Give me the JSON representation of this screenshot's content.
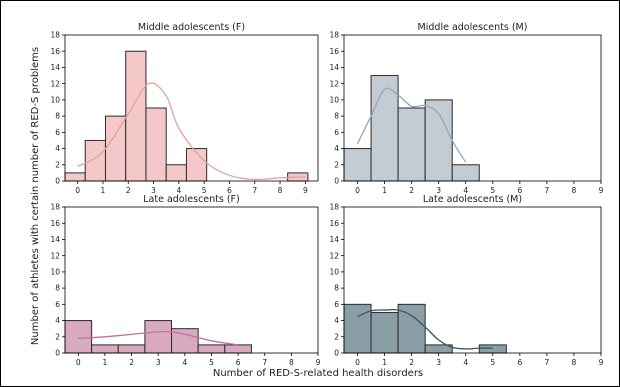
{
  "figure": {
    "ylabel": "Number of athletes with certain number of RED-S problems",
    "xlabel": "Number of RED-S-related health disorders"
  },
  "chart_data": [
    {
      "type": "bar",
      "title": "Middle adolescents (F)",
      "xlim": [
        -0.5,
        9.5
      ],
      "ylim": [
        0,
        18
      ],
      "xticks": [
        0,
        1,
        2,
        3,
        4,
        5,
        6,
        7,
        8,
        9
      ],
      "yticks": [
        0,
        2,
        4,
        6,
        8,
        10,
        12,
        14,
        16,
        18
      ],
      "bins": [
        {
          "start": -0.5,
          "end": 0.3,
          "value": 1
        },
        {
          "start": 0.3,
          "end": 1.1,
          "value": 5
        },
        {
          "start": 1.1,
          "end": 1.9,
          "value": 8
        },
        {
          "start": 1.9,
          "end": 2.7,
          "value": 16
        },
        {
          "start": 2.7,
          "end": 3.5,
          "value": 9
        },
        {
          "start": 3.5,
          "end": 4.3,
          "value": 2
        },
        {
          "start": 4.3,
          "end": 5.1,
          "value": 4
        },
        {
          "start": 8.3,
          "end": 9.1,
          "value": 1
        }
      ],
      "kde": [
        [
          0,
          1.8
        ],
        [
          1,
          3.6
        ],
        [
          2,
          8.3
        ],
        [
          2.8,
          12.0
        ],
        [
          3.5,
          10.5
        ],
        [
          4,
          6.5
        ],
        [
          5,
          2.5
        ],
        [
          6,
          0.7
        ],
        [
          7,
          0.2
        ],
        [
          8,
          0.4
        ],
        [
          9,
          0.5
        ]
      ],
      "bar_color": "#f4c8c8",
      "kde_color": "#e59f9f"
    },
    {
      "type": "bar",
      "title": "Middle adolescents (M)",
      "xlim": [
        -0.5,
        9
      ],
      "ylim": [
        0,
        18
      ],
      "xticks": [
        0,
        1,
        2,
        3,
        4,
        5,
        6,
        7,
        8,
        9
      ],
      "yticks": [
        0,
        2,
        4,
        6,
        8,
        10,
        12,
        14,
        16,
        18
      ],
      "bins": [
        {
          "start": -0.5,
          "end": 0.5,
          "value": 4
        },
        {
          "start": 0.5,
          "end": 1.5,
          "value": 13
        },
        {
          "start": 1.5,
          "end": 2.5,
          "value": 9
        },
        {
          "start": 2.5,
          "end": 3.5,
          "value": 10
        },
        {
          "start": 3.5,
          "end": 4.5,
          "value": 2
        }
      ],
      "kde": [
        [
          0,
          4.6
        ],
        [
          0.5,
          8.0
        ],
        [
          1,
          11.3
        ],
        [
          1.5,
          10.6
        ],
        [
          2,
          9.2
        ],
        [
          2.5,
          9.3
        ],
        [
          3,
          8.3
        ],
        [
          3.5,
          5.0
        ],
        [
          4,
          2.3
        ]
      ],
      "bar_color": "#c3cbd3",
      "kde_color": "#9aa6b2"
    },
    {
      "type": "bar",
      "title": "Late adolescents (F)",
      "xlim": [
        -0.5,
        9
      ],
      "ylim": [
        0,
        18
      ],
      "xticks": [
        0,
        1,
        2,
        3,
        4,
        5,
        6,
        7,
        8,
        9
      ],
      "yticks": [
        0,
        2,
        4,
        6,
        8,
        10,
        12,
        14,
        16,
        18
      ],
      "bins": [
        {
          "start": -0.5,
          "end": 0.5,
          "value": 4
        },
        {
          "start": 0.5,
          "end": 1.5,
          "value": 1
        },
        {
          "start": 1.5,
          "end": 2.5,
          "value": 1
        },
        {
          "start": 2.5,
          "end": 3.5,
          "value": 4
        },
        {
          "start": 3.5,
          "end": 4.5,
          "value": 3
        },
        {
          "start": 4.5,
          "end": 5.5,
          "value": 1
        },
        {
          "start": 5.5,
          "end": 6.5,
          "value": 1
        }
      ],
      "kde": [
        [
          0,
          1.8
        ],
        [
          1,
          2.0
        ],
        [
          2,
          2.3
        ],
        [
          3,
          2.6
        ],
        [
          3.5,
          2.6
        ],
        [
          4,
          2.3
        ],
        [
          5,
          1.5
        ],
        [
          6,
          1.0
        ]
      ],
      "bar_color": "#d9a9bf",
      "kde_color": "#b9769a"
    },
    {
      "type": "bar",
      "title": "Late adolescents (M)",
      "xlim": [
        -0.5,
        9
      ],
      "ylim": [
        0,
        18
      ],
      "xticks": [
        0,
        1,
        2,
        3,
        4,
        5,
        6,
        7,
        8,
        9
      ],
      "yticks": [
        0,
        2,
        4,
        6,
        8,
        10,
        12,
        14,
        16,
        18
      ],
      "bins": [
        {
          "start": -0.5,
          "end": 0.5,
          "value": 6
        },
        {
          "start": 0.5,
          "end": 1.5,
          "value": 5
        },
        {
          "start": 1.5,
          "end": 2.5,
          "value": 6
        },
        {
          "start": 2.5,
          "end": 3.5,
          "value": 1
        },
        {
          "start": 4.5,
          "end": 5.5,
          "value": 1
        }
      ],
      "kde": [
        [
          0,
          4.5
        ],
        [
          0.5,
          5.2
        ],
        [
          1,
          5.3
        ],
        [
          1.5,
          5.3
        ],
        [
          2,
          4.6
        ],
        [
          2.5,
          3.2
        ],
        [
          3,
          1.6
        ],
        [
          3.5,
          0.7
        ],
        [
          4,
          0.5
        ],
        [
          4.5,
          0.6
        ],
        [
          5,
          0.6
        ]
      ],
      "bar_color": "#8a9ea5",
      "kde_color": "#3b5560"
    }
  ]
}
